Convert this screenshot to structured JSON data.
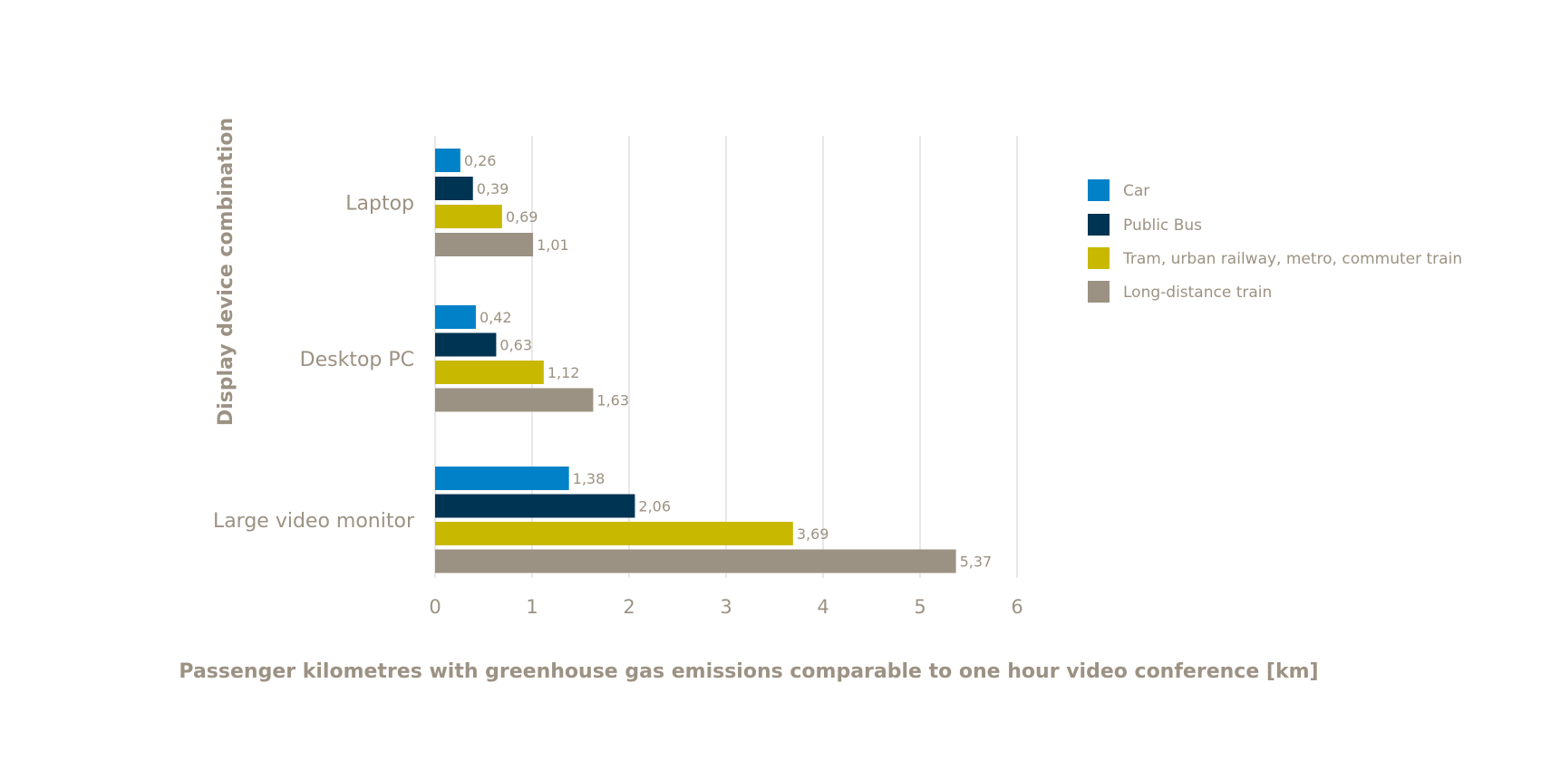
{
  "chart_data": {
    "type": "bar",
    "orientation": "horizontal",
    "categories": [
      "Laptop",
      "Desktop PC",
      "Large video monitor"
    ],
    "series": [
      {
        "name": "Car",
        "color": "#0081c8",
        "values": [
          0.26,
          0.42,
          1.38
        ],
        "labels": [
          "0,26",
          "0,42",
          "1,38"
        ]
      },
      {
        "name": "Public Bus",
        "color": "#003453",
        "values": [
          0.39,
          0.63,
          2.06
        ],
        "labels": [
          "0,39",
          "0,63",
          "2,06"
        ]
      },
      {
        "name": "Tram, urban railway, metro, commuter train",
        "color": "#c8b900",
        "values": [
          0.69,
          1.12,
          3.69
        ],
        "labels": [
          "0,69",
          "1,12",
          "3,69"
        ]
      },
      {
        "name": "Long-distance train",
        "color": "#9c9283",
        "values": [
          1.01,
          1.63,
          5.37
        ],
        "labels": [
          "1,01",
          "1,63",
          "5,37"
        ]
      }
    ],
    "xlabel": "Passenger kilometres with greenhouse gas emissions comparable to one hour video conference [km]",
    "ylabel": "Display device combination",
    "xlim": [
      0,
      6
    ],
    "xticks": [
      "0",
      "1",
      "2",
      "3",
      "4",
      "5",
      "6"
    ],
    "grid": "vertical",
    "legend_position": "right"
  }
}
